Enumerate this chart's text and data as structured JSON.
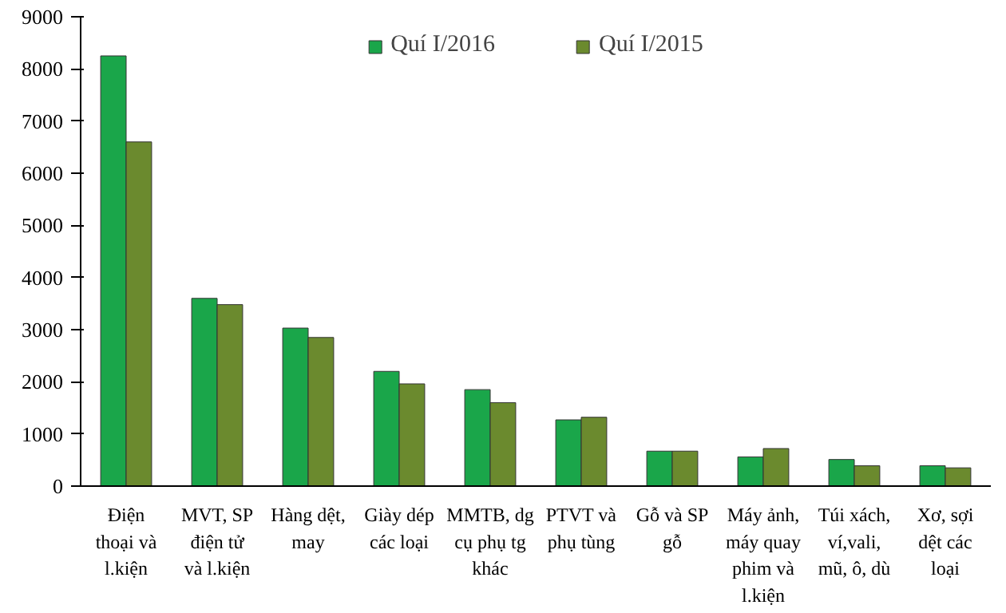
{
  "chart_data": {
    "type": "bar",
    "categories": [
      "Điện thoại và l.kiện",
      "MVT, SP điện tử và l.kiện",
      "Hàng dệt, may",
      "Giày dép các loại",
      "MMTB, dg cụ phụ tg khác",
      "PTVT và phụ tùng",
      "Gỗ và SP gỗ",
      "Máy ảnh, máy quay phim và l.kiện",
      "Túi xách, ví,vali, mũ, ô, dù",
      "Xơ, sợi dệt các loại"
    ],
    "series": [
      {
        "name": "Quí I/2016",
        "color": "#1aa64a",
        "values": [
          8250,
          3600,
          3030,
          2200,
          1850,
          1270,
          670,
          560,
          510,
          390
        ]
      },
      {
        "name": "Quí I/2015",
        "color": "#6b8a2e",
        "values": [
          6600,
          3480,
          2850,
          1960,
          1600,
          1320,
          670,
          720,
          390,
          350
        ]
      }
    ],
    "ylim": [
      0,
      9000
    ],
    "yticks": [
      0,
      1000,
      2000,
      3000,
      4000,
      5000,
      6000,
      7000,
      8000,
      9000
    ],
    "grid": false,
    "legend": "top"
  }
}
